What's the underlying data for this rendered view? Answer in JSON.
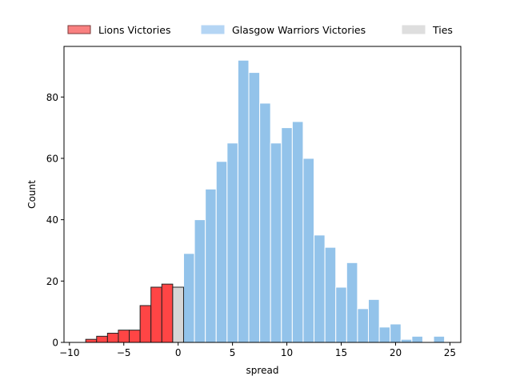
{
  "chart_data": {
    "type": "bar",
    "subtype": "histogram",
    "xlabel": "spread",
    "ylabel": "Count",
    "xlim": [
      -10.5,
      26
    ],
    "ylim": [
      0,
      96.5
    ],
    "xticks": [
      -10,
      -5,
      0,
      5,
      10,
      15,
      20,
      25
    ],
    "yticks": [
      0,
      20,
      40,
      60,
      80
    ],
    "grid": false,
    "legend_position": "top, outside plot",
    "series": [
      {
        "name": "Lions Victories",
        "color": "#ff4545",
        "edge_color": "#222222",
        "bins": [
          {
            "x0": -8.5,
            "x1": -7.5,
            "value": 1
          },
          {
            "x0": -7.5,
            "x1": -6.5,
            "value": 2
          },
          {
            "x0": -6.5,
            "x1": -5.5,
            "value": 3
          },
          {
            "x0": -5.5,
            "x1": -4.5,
            "value": 4
          },
          {
            "x0": -4.5,
            "x1": -3.5,
            "value": 4
          },
          {
            "x0": -3.5,
            "x1": -2.5,
            "value": 12
          },
          {
            "x0": -2.5,
            "x1": -1.5,
            "value": 18
          },
          {
            "x0": -1.5,
            "x1": -0.5,
            "value": 19
          }
        ]
      },
      {
        "name": "Glasgow Warriors Victories",
        "color": "#93c3ea",
        "edge_color": "#ffffff",
        "bins": [
          {
            "x0": 0.5,
            "x1": 1.5,
            "value": 29
          },
          {
            "x0": 1.5,
            "x1": 2.5,
            "value": 40
          },
          {
            "x0": 2.5,
            "x1": 3.5,
            "value": 50
          },
          {
            "x0": 3.5,
            "x1": 4.5,
            "value": 59
          },
          {
            "x0": 4.5,
            "x1": 5.5,
            "value": 65
          },
          {
            "x0": 5.5,
            "x1": 6.5,
            "value": 92
          },
          {
            "x0": 6.5,
            "x1": 7.5,
            "value": 88
          },
          {
            "x0": 7.5,
            "x1": 8.5,
            "value": 78
          },
          {
            "x0": 8.5,
            "x1": 9.5,
            "value": 65
          },
          {
            "x0": 9.5,
            "x1": 10.5,
            "value": 70
          },
          {
            "x0": 10.5,
            "x1": 11.5,
            "value": 72
          },
          {
            "x0": 11.5,
            "x1": 12.5,
            "value": 60
          },
          {
            "x0": 12.5,
            "x1": 13.5,
            "value": 35
          },
          {
            "x0": 13.5,
            "x1": 14.5,
            "value": 31
          },
          {
            "x0": 14.5,
            "x1": 15.5,
            "value": 18
          },
          {
            "x0": 15.5,
            "x1": 16.5,
            "value": 26
          },
          {
            "x0": 16.5,
            "x1": 17.5,
            "value": 11
          },
          {
            "x0": 17.5,
            "x1": 18.5,
            "value": 14
          },
          {
            "x0": 18.5,
            "x1": 19.5,
            "value": 5
          },
          {
            "x0": 19.5,
            "x1": 20.5,
            "value": 6
          },
          {
            "x0": 20.5,
            "x1": 21.5,
            "value": 1
          },
          {
            "x0": 21.5,
            "x1": 22.5,
            "value": 2
          },
          {
            "x0": 22.5,
            "x1": 23.5,
            "value": 0
          },
          {
            "x0": 23.5,
            "x1": 24.5,
            "value": 2
          }
        ]
      },
      {
        "name": "Ties",
        "color": "#d6d6d6",
        "edge_color": "#222222",
        "bins": [
          {
            "x0": -0.5,
            "x1": 0.5,
            "value": 18
          }
        ]
      }
    ],
    "legend": [
      {
        "label": "Lions Victories",
        "swatch_color": "#f98080",
        "swatch_edge": "#7a3a3a"
      },
      {
        "label": "Glasgow Warriors Victories",
        "swatch_color": "#b4d5f4",
        "swatch_edge": "#b4d5f4"
      },
      {
        "label": "Ties",
        "swatch_color": "#dedede",
        "swatch_edge": "#dedede"
      }
    ]
  }
}
